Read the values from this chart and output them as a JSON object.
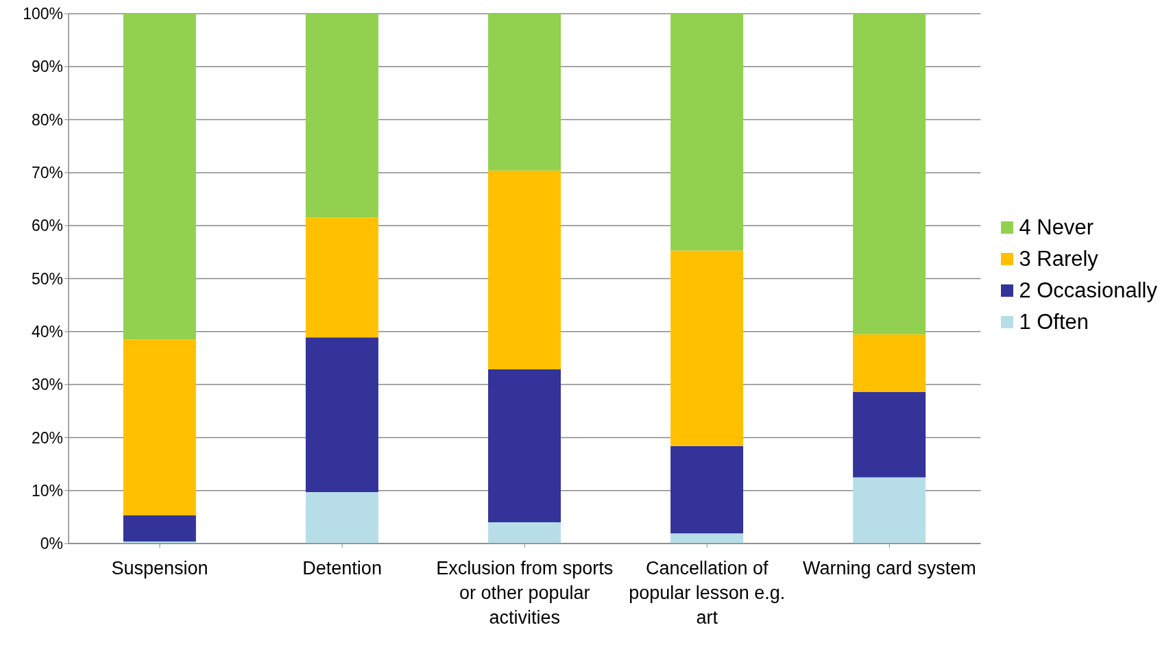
{
  "chart_data": {
    "type": "bar",
    "stacked": true,
    "categories": [
      "Suspension",
      "Detention",
      "Exclusion from sports or other popular activities",
      "Cancellation of popular lesson e.g. art",
      "Warning card system"
    ],
    "series": [
      {
        "name": "1 Often",
        "color": "#b7dee8",
        "values": [
          0.4,
          9.7,
          4.0,
          1.9,
          12.5
        ]
      },
      {
        "name": "2 Occasionally",
        "color": "#333399",
        "values": [
          4.9,
          29.2,
          28.9,
          16.5,
          16.1
        ]
      },
      {
        "name": "3 Rarely",
        "color": "#ffc000",
        "values": [
          33.2,
          22.6,
          37.5,
          36.9,
          10.9
        ]
      },
      {
        "name": "4 Never",
        "color": "#92d050",
        "values": [
          61.5,
          38.5,
          29.6,
          44.7,
          60.5
        ]
      }
    ],
    "ylim": [
      0,
      100
    ],
    "yticks": [
      {
        "value": 0,
        "label": "0%"
      },
      {
        "value": 10,
        "label": "10%"
      },
      {
        "value": 20,
        "label": "20%"
      },
      {
        "value": 30,
        "label": "30%"
      },
      {
        "value": 40,
        "label": "40%"
      },
      {
        "value": 50,
        "label": "50%"
      },
      {
        "value": 60,
        "label": "60%"
      },
      {
        "value": 70,
        "label": "70%"
      },
      {
        "value": 80,
        "label": "80%"
      },
      {
        "value": 90,
        "label": "90%"
      },
      {
        "value": 100,
        "label": "100%"
      }
    ],
    "grid": "y",
    "legend": "right"
  }
}
